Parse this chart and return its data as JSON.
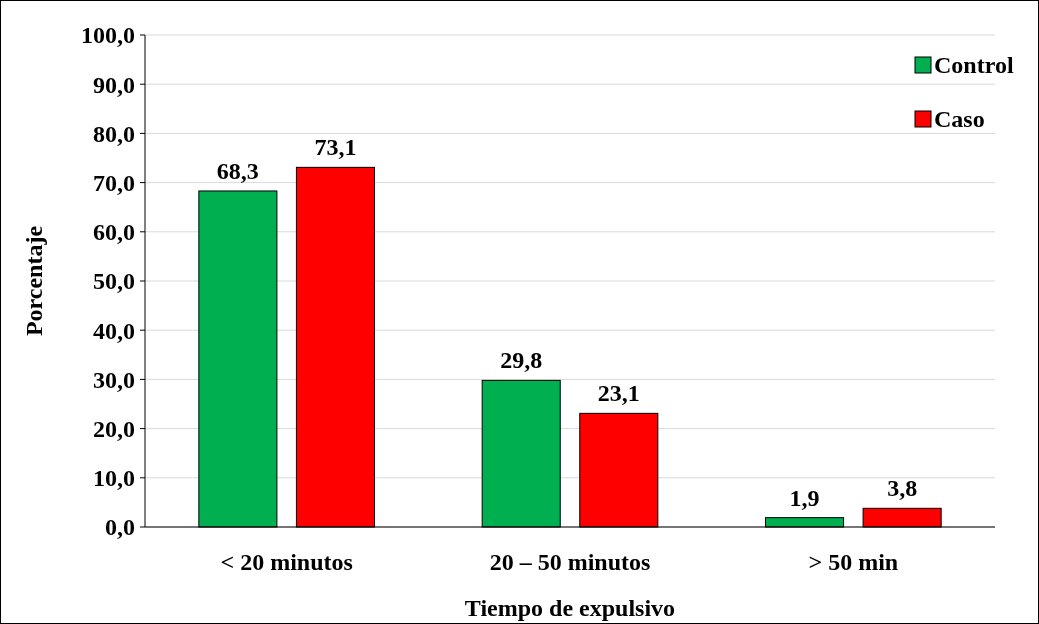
{
  "chart_data": {
    "type": "bar",
    "xlabel": "Tiempo de expulsivo",
    "ylabel": "Porcentaje",
    "categories": [
      "< 20 minutos",
      "20 – 50 minutos",
      "> 50 min"
    ],
    "series": [
      {
        "name": "Control",
        "color": "#00b050",
        "values": [
          68.3,
          29.8,
          1.9
        ],
        "value_labels": [
          "68,3",
          "29,8",
          "1,9"
        ]
      },
      {
        "name": "Caso",
        "color": "#ff0000",
        "values": [
          73.1,
          23.1,
          3.8
        ],
        "value_labels": [
          "73,1",
          "23,1",
          "3,8"
        ]
      }
    ],
    "ylim": [
      0,
      100
    ],
    "yticks": [
      {
        "value": 0,
        "label": "0,0"
      },
      {
        "value": 10,
        "label": "10,0"
      },
      {
        "value": 20,
        "label": "20,0"
      },
      {
        "value": 30,
        "label": "30,0"
      },
      {
        "value": 40,
        "label": "40,0"
      },
      {
        "value": 50,
        "label": "50,0"
      },
      {
        "value": 60,
        "label": "60,0"
      },
      {
        "value": 70,
        "label": "70,0"
      },
      {
        "value": 80,
        "label": "80,0"
      },
      {
        "value": 90,
        "label": "90,0"
      },
      {
        "value": 100,
        "label": "100,0"
      }
    ],
    "grid": "y",
    "legend": "top right"
  }
}
